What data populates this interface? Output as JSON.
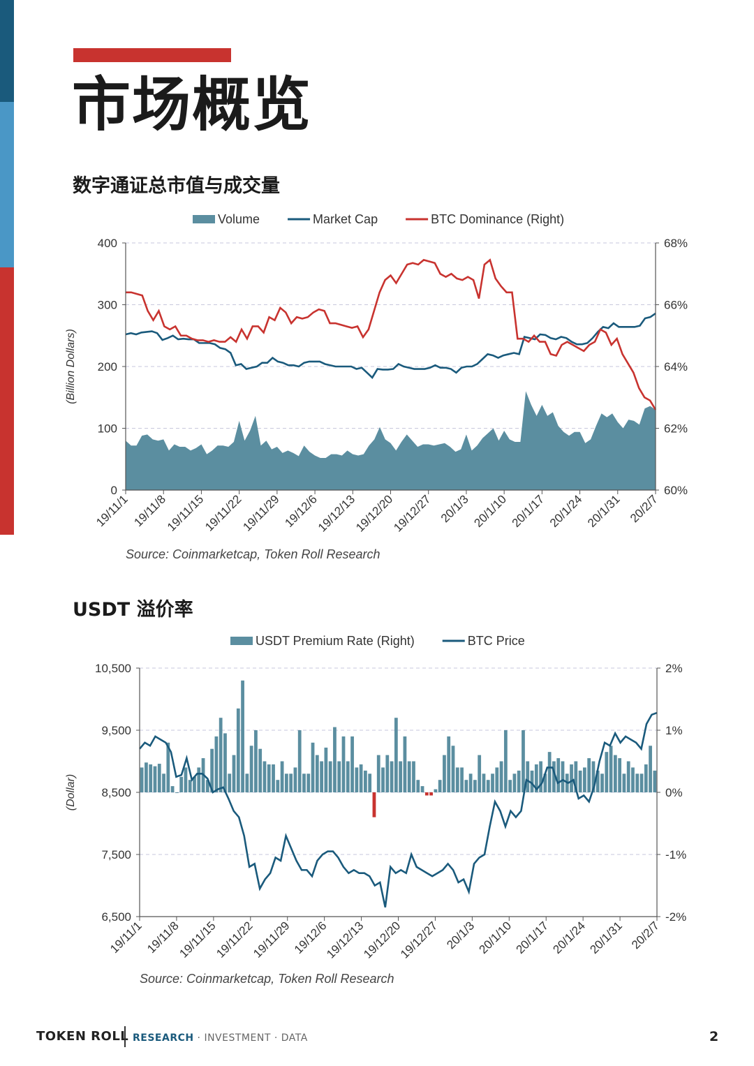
{
  "page": {
    "title": "市场概览",
    "page_number": "2"
  },
  "colors": {
    "accent_red": "#c8332f",
    "navy": "#1a5a7c",
    "teal_fill": "#5b8ea0",
    "side_light_blue": "#4a97c6"
  },
  "footer": {
    "brand": "TOKEN ROLL",
    "tag_primary": "RESEARCH",
    "tag_rest": " · INVESTMENT · DATA"
  },
  "sections": [
    {
      "title": "数字通证总市值与成交量"
    },
    {
      "title": "USDT 溢价率"
    }
  ],
  "chart_data": [
    {
      "type": "area",
      "legend": [
        {
          "name": "Volume",
          "style": "area",
          "color": "#5b8ea0"
        },
        {
          "name": "Market Cap",
          "style": "line",
          "color": "#1a5a7c"
        },
        {
          "name": "BTC Dominance (Right)",
          "style": "line",
          "color": "#c8332f"
        }
      ],
      "ylabel": "(Billion Dollars)",
      "ylim": [
        0,
        400
      ],
      "yticks": [
        "0",
        "100",
        "200",
        "300",
        "400"
      ],
      "ylim_right": [
        60,
        68
      ],
      "yticks_right": [
        "60%",
        "62%",
        "64%",
        "66%",
        "68%"
      ],
      "xticks": [
        "19/11/1",
        "19/11/8",
        "19/11/15",
        "19/11/22",
        "19/11/29",
        "19/12/6",
        "19/12/13",
        "19/12/20",
        "19/12/27",
        "20/1/3",
        "20/1/10",
        "20/1/17",
        "20/1/24",
        "20/1/31",
        "20/2/7"
      ],
      "x_start": "19/11/1",
      "x_end": "20/2/7",
      "source": "Source: Coinmarketcap, Token Roll Research",
      "series": [
        {
          "name": "Volume",
          "values": [
            80,
            72,
            72,
            88,
            90,
            82,
            80,
            82,
            64,
            74,
            70,
            70,
            64,
            68,
            74,
            58,
            64,
            72,
            72,
            70,
            78,
            112,
            80,
            96,
            120,
            72,
            80,
            66,
            70,
            60,
            64,
            60,
            55,
            72,
            62,
            56,
            52,
            52,
            58,
            58,
            56,
            64,
            58,
            56,
            58,
            72,
            82,
            102,
            82,
            76,
            64,
            78,
            90,
            80,
            70,
            74,
            74,
            72,
            74,
            76,
            70,
            62,
            66,
            90,
            64,
            72,
            84,
            92,
            100,
            80,
            96,
            82,
            78,
            78,
            160,
            138,
            120,
            138,
            120,
            126,
            104,
            94,
            88,
            94,
            94,
            76,
            82,
            104,
            124,
            118,
            124,
            110,
            100,
            114,
            112,
            106,
            132,
            136,
            130
          ],
          "color": "#5b8ea0"
        },
        {
          "name": "Market Cap",
          "values": [
            252,
            254,
            252,
            255,
            256,
            257,
            254,
            243,
            246,
            250,
            244,
            245,
            244,
            244,
            238,
            238,
            238,
            236,
            230,
            228,
            222,
            202,
            204,
            196,
            198,
            200,
            206,
            206,
            214,
            208,
            206,
            202,
            202,
            200,
            206,
            208,
            208,
            208,
            204,
            202,
            200,
            200,
            200,
            200,
            196,
            198,
            190,
            182,
            196,
            195,
            195,
            196,
            204,
            200,
            198,
            196,
            196,
            196,
            198,
            202,
            198,
            198,
            196,
            190,
            198,
            200,
            200,
            204,
            212,
            220,
            218,
            214,
            218,
            220,
            222,
            220,
            248,
            246,
            244,
            252,
            251,
            246,
            244,
            248,
            246,
            240,
            236,
            236,
            238,
            246,
            256,
            264,
            262,
            270,
            264,
            264,
            264,
            264,
            266,
            278,
            280,
            286
          ],
          "color": "#1a5a7c"
        },
        {
          "name": "BTC Dominance (Right)",
          "values": [
            66.4,
            66.4,
            66.35,
            66.3,
            65.8,
            65.5,
            65.8,
            65.3,
            65.2,
            65.3,
            65.0,
            65.0,
            64.9,
            64.85,
            64.85,
            64.8,
            64.85,
            64.8,
            64.8,
            64.95,
            64.8,
            65.2,
            64.9,
            65.3,
            65.3,
            65.1,
            65.6,
            65.5,
            65.9,
            65.75,
            65.4,
            65.6,
            65.55,
            65.6,
            65.75,
            65.85,
            65.8,
            65.4,
            65.4,
            65.35,
            65.3,
            65.25,
            65.3,
            64.95,
            65.2,
            65.8,
            66.4,
            66.8,
            66.95,
            66.7,
            67.0,
            67.3,
            67.35,
            67.3,
            67.45,
            67.4,
            67.35,
            67.0,
            66.9,
            67.0,
            66.85,
            66.8,
            66.9,
            66.8,
            66.2,
            67.3,
            67.45,
            66.85,
            66.6,
            66.4,
            66.4,
            64.9,
            64.9,
            64.8,
            65.0,
            64.8,
            64.8,
            64.4,
            64.35,
            64.7,
            64.8,
            64.7,
            64.6,
            64.5,
            64.7,
            64.8,
            65.2,
            65.1,
            64.7,
            64.9,
            64.4,
            64.1,
            63.8,
            63.3,
            63.0,
            62.9,
            62.6
          ],
          "color": "#c8332f",
          "axis": "right"
        }
      ]
    },
    {
      "type": "bar",
      "legend": [
        {
          "name": "USDT Premium Rate (Right)",
          "style": "bar",
          "color": "#5b8ea0"
        },
        {
          "name": "BTC Price",
          "style": "line",
          "color": "#1a5a7c"
        }
      ],
      "ylabel": "(Dollar)",
      "ylim": [
        6500,
        10500
      ],
      "yticks": [
        "6,500",
        "7,500",
        "8,500",
        "9,500",
        "10,500"
      ],
      "ylim_right": [
        -2,
        2
      ],
      "yticks_right": [
        "-2%",
        "-1%",
        "0%",
        "1%",
        "2%"
      ],
      "xticks": [
        "19/11/1",
        "19/11/8",
        "19/11/15",
        "19/11/22",
        "19/11/29",
        "19/12/6",
        "19/12/13",
        "19/12/20",
        "19/12/27",
        "20/1/3",
        "20/1/10",
        "20/1/17",
        "20/1/24",
        "20/1/31",
        "20/2/7"
      ],
      "x_start": "19/11/1",
      "x_end": "20/2/7",
      "source": "Source: Coinmarketcap, Token Roll Research",
      "series": [
        {
          "name": "USDT Premium Rate (Right)",
          "values": [
            0.4,
            0.48,
            0.45,
            0.42,
            0.46,
            0.3,
            0.8,
            0.1,
            0.0,
            0.25,
            0.4,
            0.2,
            0.25,
            0.4,
            0.55,
            0.2,
            0.7,
            0.9,
            1.2,
            0.95,
            0.3,
            0.6,
            1.35,
            1.8,
            0.3,
            0.75,
            1.0,
            0.7,
            0.5,
            0.45,
            0.45,
            0.2,
            0.5,
            0.3,
            0.3,
            0.4,
            1.0,
            0.3,
            0.3,
            0.8,
            0.6,
            0.5,
            0.72,
            0.5,
            1.05,
            0.5,
            0.9,
            0.5,
            0.9,
            0.4,
            0.45,
            0.35,
            0.3,
            -0.4,
            0.6,
            0.4,
            0.6,
            0.5,
            1.2,
            0.5,
            0.9,
            0.5,
            0.5,
            0.2,
            0.1,
            -0.05,
            -0.05,
            0.05,
            0.2,
            0.6,
            0.9,
            0.75,
            0.4,
            0.4,
            0.2,
            0.3,
            0.2,
            0.6,
            0.3,
            0.2,
            0.3,
            0.4,
            0.5,
            1.0,
            0.2,
            0.3,
            0.35,
            1.0,
            0.5,
            0.35,
            0.45,
            0.5,
            0.3,
            0.65,
            0.5,
            0.55,
            0.5,
            0.3,
            0.45,
            0.5,
            0.35,
            0.4,
            0.55,
            0.5,
            0.35,
            0.3,
            0.65,
            0.75,
            0.6,
            0.55,
            0.3,
            0.5,
            0.4,
            0.3,
            0.3,
            0.45,
            0.75,
            0.35
          ],
          "color": "#5b8ea0",
          "negative_color": "#c8332f",
          "axis": "right"
        },
        {
          "name": "BTC Price",
          "values": [
            9200,
            9300,
            9250,
            9400,
            9350,
            9300,
            9150,
            8750,
            8780,
            9050,
            8700,
            8800,
            8800,
            8720,
            8500,
            8550,
            8580,
            8400,
            8200,
            8100,
            7800,
            7300,
            7350,
            6950,
            7100,
            7200,
            7450,
            7400,
            7800,
            7600,
            7400,
            7250,
            7250,
            7150,
            7400,
            7500,
            7550,
            7550,
            7450,
            7300,
            7200,
            7250,
            7200,
            7200,
            7150,
            7000,
            7050,
            6650,
            7300,
            7200,
            7250,
            7200,
            7500,
            7300,
            7250,
            7200,
            7150,
            7200,
            7250,
            7350,
            7250,
            7050,
            7100,
            6900,
            7350,
            7450,
            7500,
            7950,
            8350,
            8200,
            7950,
            8200,
            8100,
            8200,
            8700,
            8650,
            8550,
            8650,
            8900,
            8900,
            8650,
            8700,
            8650,
            8700,
            8400,
            8450,
            8350,
            8600,
            9000,
            9300,
            9250,
            9450,
            9300,
            9400,
            9350,
            9300,
            9200,
            9600,
            9750,
            9780
          ],
          "color": "#1a5a7c"
        }
      ]
    }
  ]
}
